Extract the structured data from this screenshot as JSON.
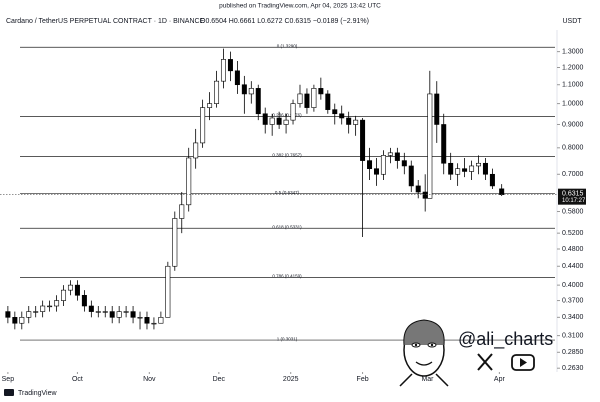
{
  "chart_data": {
    "type": "candlestick",
    "published": "published on TradingView.com, Apr 04, 2025 13:42 UTC",
    "title": "Cardano / TetherUS PERPETUAL CONTRACT · 1D · BINANCE",
    "quote_text": "O0.6504 H0.6661 L0.6272 C0.6315 −0.0189 (−2.91%)",
    "currency": "USDT",
    "last_price": 0.6315,
    "countdown": "10:17:27",
    "watermark": "@ali_charts",
    "brand": "TradingView",
    "log_scale": true,
    "up_color": "#ffffff",
    "down_color": "#000000",
    "ylim": [
      0.258,
      1.45
    ],
    "xlim": [
      -3.4,
      236
    ],
    "yticks": [
      {
        "value": 1.3,
        "label": "1.3000"
      },
      {
        "value": 1.2,
        "label": "1.2000"
      },
      {
        "value": 1.1,
        "label": "1.1000"
      },
      {
        "value": 1.0,
        "label": "1.0000"
      },
      {
        "value": 0.9,
        "label": "0.9000"
      },
      {
        "value": 0.8,
        "label": "0.8000"
      },
      {
        "value": 0.7,
        "label": "0.7000"
      },
      {
        "value": 0.58,
        "label": "0.5800"
      },
      {
        "value": 0.52,
        "label": "0.5200"
      },
      {
        "value": 0.48,
        "label": "0.4800"
      },
      {
        "value": 0.44,
        "label": "0.4400"
      },
      {
        "value": 0.4,
        "label": "0.4000"
      },
      {
        "value": 0.37,
        "label": "0.3700"
      },
      {
        "value": 0.34,
        "label": "0.3400"
      },
      {
        "value": 0.31,
        "label": "0.3100"
      },
      {
        "value": 0.285,
        "label": "0.2850"
      },
      {
        "value": 0.263,
        "label": "0.2630"
      }
    ],
    "xticks": [
      {
        "value": 0,
        "label": "Sep"
      },
      {
        "value": 30,
        "label": "Oct"
      },
      {
        "value": 61,
        "label": "Nov"
      },
      {
        "value": 91,
        "label": "Dec"
      },
      {
        "value": 122,
        "label": "2025"
      },
      {
        "value": 153,
        "label": "Feb"
      },
      {
        "value": 181,
        "label": "Mar"
      },
      {
        "value": 212,
        "label": "Apr"
      }
    ],
    "fib_levels": [
      {
        "value": 1.329,
        "label": "0 (1.3290)"
      },
      {
        "value": 0.9376,
        "label": "0.236 (0.9376)"
      },
      {
        "value": 0.7657,
        "label": "0.382 (0.7657)"
      },
      {
        "value": 0.6347,
        "label": "0.5 (0.6347)"
      },
      {
        "value": 0.5331,
        "label": "0.618 (0.5331)"
      },
      {
        "value": 0.4159,
        "label": "0.786 (0.4159)"
      },
      {
        "value": 0.3031,
        "label": "1 (0.3031)"
      }
    ],
    "x": [
      0,
      3,
      6,
      9,
      12,
      15,
      18,
      21,
      24,
      27,
      30,
      33,
      36,
      39,
      42,
      45,
      48,
      51,
      54,
      57,
      60,
      63,
      66,
      69,
      72,
      75,
      78,
      81,
      84,
      87,
      90,
      93,
      96,
      99,
      102,
      105,
      108,
      111,
      114,
      117,
      120,
      123,
      126,
      129,
      132,
      135,
      138,
      141,
      144,
      147,
      150,
      153,
      156,
      159,
      162,
      165,
      168,
      171,
      174,
      177,
      180,
      182,
      185,
      188,
      191,
      194,
      197,
      200,
      203,
      206,
      209,
      213
    ],
    "open": [
      0.35,
      0.34,
      0.33,
      0.34,
      0.35,
      0.35,
      0.36,
      0.36,
      0.37,
      0.39,
      0.4,
      0.38,
      0.36,
      0.35,
      0.35,
      0.35,
      0.34,
      0.35,
      0.35,
      0.34,
      0.34,
      0.33,
      0.33,
      0.34,
      0.44,
      0.56,
      0.6,
      0.76,
      0.82,
      0.98,
      1.0,
      1.12,
      1.25,
      1.18,
      1.1,
      1.05,
      1.08,
      0.95,
      0.9,
      0.93,
      0.9,
      0.92,
      1.0,
      1.05,
      0.98,
      1.08,
      1.05,
      0.97,
      0.95,
      0.93,
      0.9,
      0.92,
      0.75,
      0.72,
      0.7,
      0.77,
      0.78,
      0.75,
      0.73,
      0.66,
      0.64,
      0.62,
      1.05,
      0.9,
      0.74,
      0.7,
      0.72,
      0.71,
      0.73,
      0.74,
      0.7,
      0.6504
    ],
    "high": [
      0.36,
      0.35,
      0.35,
      0.36,
      0.36,
      0.37,
      0.37,
      0.38,
      0.4,
      0.41,
      0.41,
      0.39,
      0.37,
      0.36,
      0.36,
      0.36,
      0.36,
      0.36,
      0.36,
      0.35,
      0.35,
      0.34,
      0.35,
      0.45,
      0.58,
      0.64,
      0.8,
      0.88,
      1.02,
      1.06,
      1.18,
      1.32,
      1.3,
      1.24,
      1.15,
      1.12,
      1.1,
      0.98,
      0.95,
      0.96,
      0.95,
      1.02,
      1.1,
      1.08,
      1.1,
      1.14,
      1.07,
      1.0,
      0.99,
      0.96,
      0.94,
      0.93,
      0.8,
      0.76,
      0.79,
      0.8,
      0.8,
      0.78,
      0.75,
      0.68,
      0.7,
      1.18,
      1.12,
      0.95,
      0.78,
      0.74,
      0.76,
      0.75,
      0.77,
      0.76,
      0.72,
      0.6661
    ],
    "low": [
      0.33,
      0.32,
      0.32,
      0.33,
      0.34,
      0.34,
      0.35,
      0.35,
      0.36,
      0.38,
      0.37,
      0.35,
      0.34,
      0.34,
      0.34,
      0.33,
      0.33,
      0.34,
      0.33,
      0.32,
      0.32,
      0.32,
      0.33,
      0.34,
      0.43,
      0.52,
      0.58,
      0.72,
      0.8,
      0.92,
      0.98,
      1.08,
      1.12,
      1.05,
      0.95,
      1.0,
      0.92,
      0.86,
      0.85,
      0.88,
      0.86,
      0.9,
      0.98,
      0.95,
      0.96,
      1.02,
      0.95,
      0.9,
      0.9,
      0.86,
      0.85,
      0.51,
      0.68,
      0.66,
      0.68,
      0.74,
      0.72,
      0.7,
      0.64,
      0.62,
      0.58,
      0.62,
      0.82,
      0.7,
      0.68,
      0.66,
      0.69,
      0.68,
      0.7,
      0.68,
      0.65,
      0.6272
    ],
    "close": [
      0.34,
      0.33,
      0.34,
      0.35,
      0.35,
      0.36,
      0.36,
      0.37,
      0.39,
      0.4,
      0.38,
      0.36,
      0.35,
      0.35,
      0.35,
      0.34,
      0.35,
      0.35,
      0.34,
      0.34,
      0.33,
      0.33,
      0.34,
      0.44,
      0.56,
      0.6,
      0.76,
      0.82,
      0.98,
      1.0,
      1.12,
      1.25,
      1.18,
      1.1,
      1.05,
      1.08,
      0.95,
      0.9,
      0.93,
      0.9,
      0.92,
      1.0,
      1.05,
      0.98,
      1.08,
      1.05,
      0.97,
      0.95,
      0.93,
      0.9,
      0.92,
      0.75,
      0.72,
      0.7,
      0.77,
      0.78,
      0.75,
      0.73,
      0.66,
      0.64,
      0.62,
      1.05,
      0.9,
      0.74,
      0.7,
      0.72,
      0.71,
      0.73,
      0.74,
      0.7,
      0.66,
      0.6315
    ]
  }
}
